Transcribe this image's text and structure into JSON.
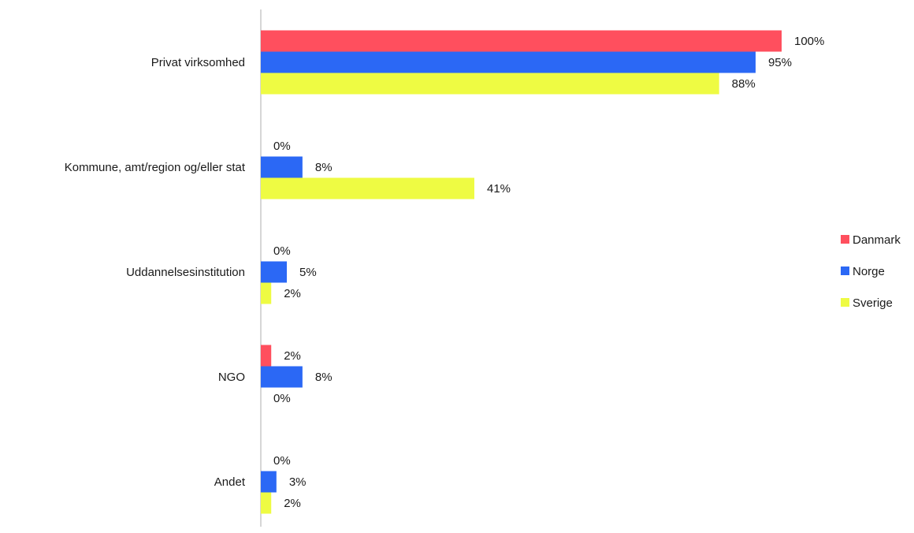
{
  "chart_data": {
    "type": "bar",
    "orientation": "horizontal",
    "title": "",
    "xlabel": "",
    "ylabel": "",
    "xlim": [
      0,
      100
    ],
    "grid": false,
    "legend_position": "right",
    "value_suffix": "%",
    "categories": [
      "Privat virksomhed",
      "Kommune, amt/region og/eller stat",
      "Uddannelsesinstitution",
      "NGO",
      "Andet"
    ],
    "series": [
      {
        "name": "Danmark",
        "color": "#ff4f5e",
        "values": [
          100,
          0,
          0,
          2,
          0
        ]
      },
      {
        "name": "Norge",
        "color": "#2b68f5",
        "values": [
          95,
          8,
          5,
          8,
          3
        ]
      },
      {
        "name": "Sverige",
        "color": "#eefb43",
        "values": [
          88,
          41,
          2,
          0,
          2
        ]
      }
    ]
  }
}
